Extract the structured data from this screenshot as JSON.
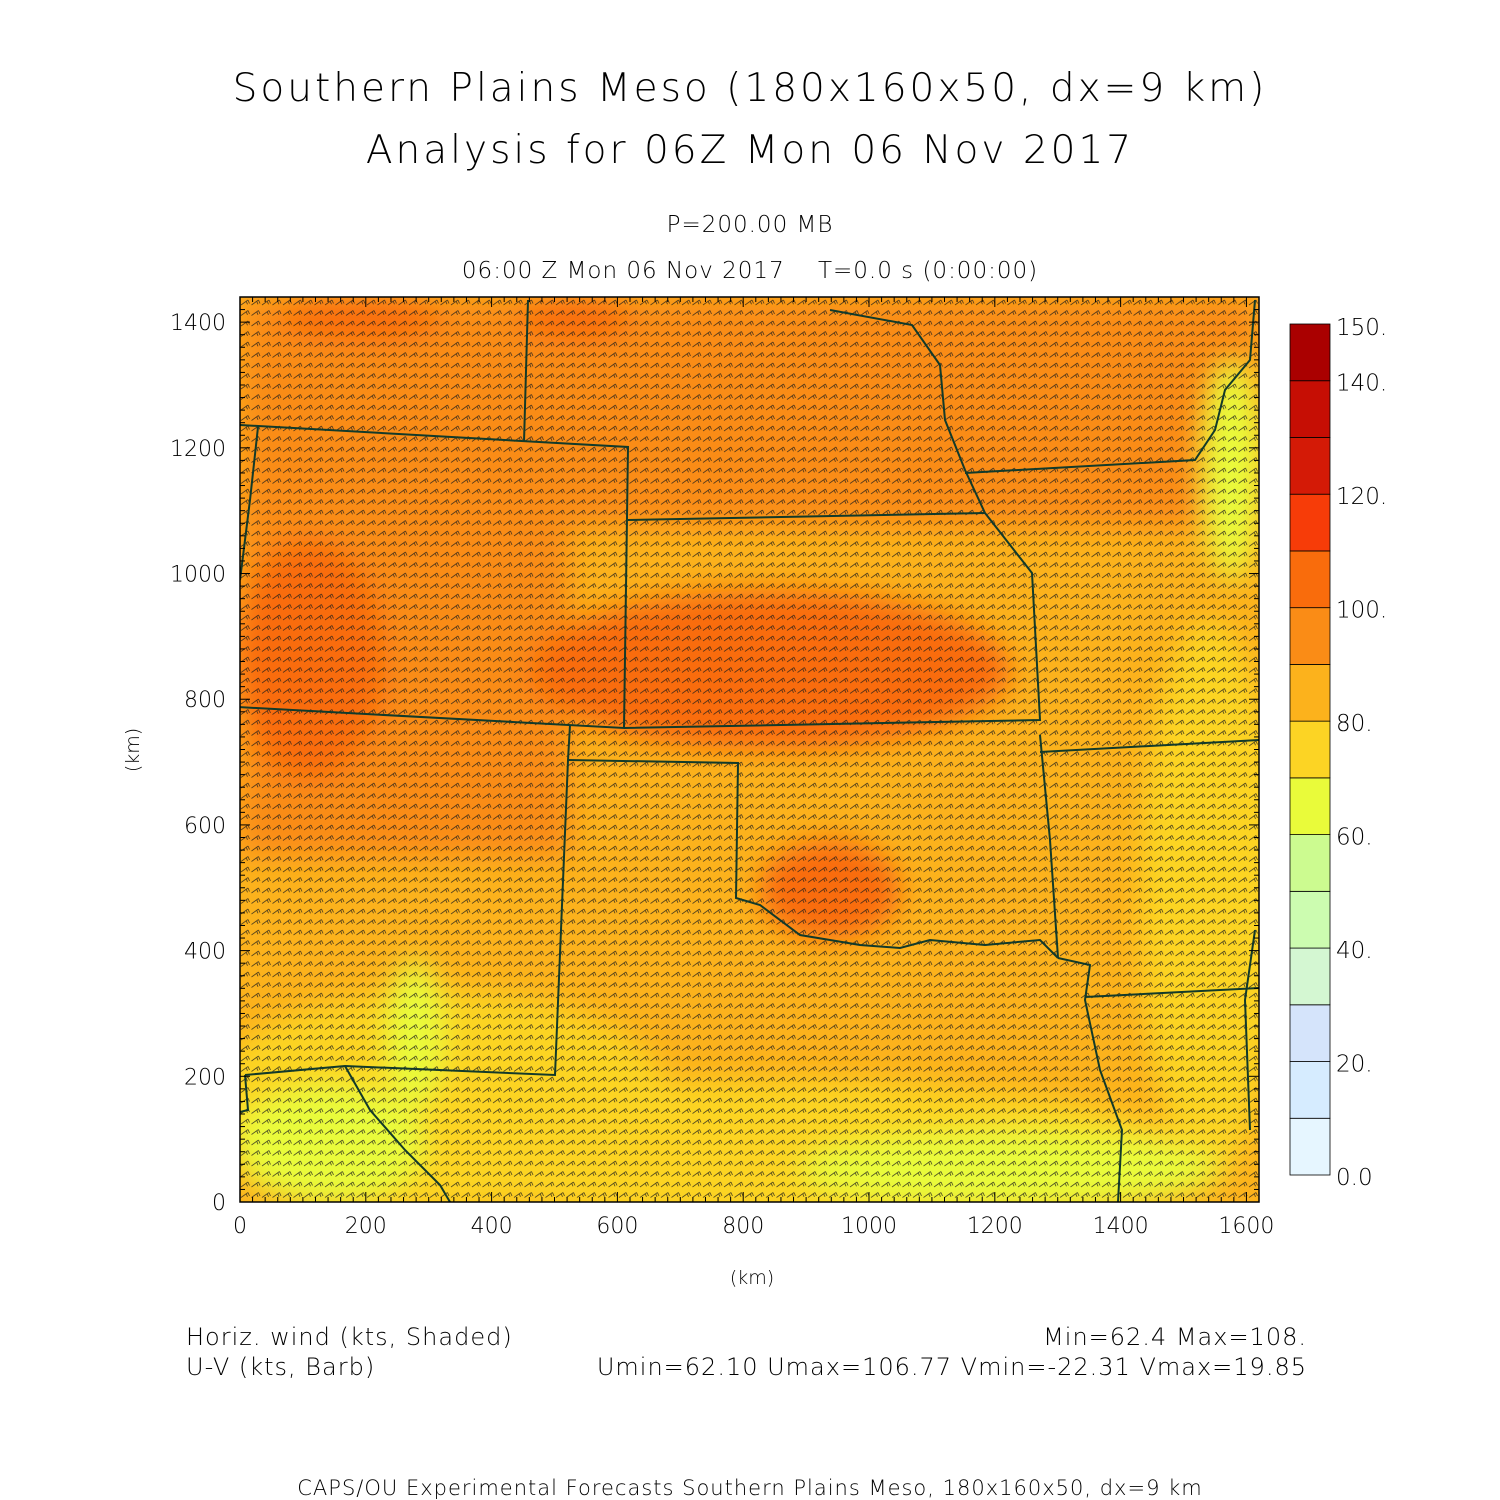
{
  "header": {
    "title_line1": "Southern Plains Meso (180x160x50, dx=9 km)",
    "title_line2": "Analysis for 06Z Mon 06 Nov 2017",
    "level": "P=200.00 MB",
    "valid_time": "06:00 Z Mon 06 Nov 2017",
    "model_time": "T=0.0 s (0:00:00)"
  },
  "axes": {
    "x_label": "(km)",
    "y_label": "(km)",
    "x_ticks": [
      "0",
      "200",
      "400",
      "600",
      "800",
      "1000",
      "1200",
      "1400",
      "1600"
    ],
    "y_ticks": [
      "0",
      "200",
      "400",
      "600",
      "800",
      "1000",
      "1200",
      "1400"
    ],
    "x_range": [
      0,
      1620
    ],
    "y_range": [
      0,
      1440
    ]
  },
  "colorbar": {
    "labels": [
      "0.0",
      "20.",
      "40.",
      "60.",
      "80.",
      "100.",
      "120.",
      "140.",
      "150."
    ],
    "colors": [
      "#e6f6ff",
      "#d6ecff",
      "#d5e4fb",
      "#d4f7d2",
      "#ccfcb0",
      "#ccfb90",
      "#e9fb3a",
      "#fcd424",
      "#fcb21c",
      "#fa8c16",
      "#f96c0c",
      "#f73c08",
      "#d41a06",
      "#c60e04",
      "#aa0000"
    ]
  },
  "legend": {
    "left_line1": "Horiz. wind (kts, Shaded)",
    "left_line2": "U-V (kts, Barb)",
    "right_line1": "Min=62.4 Max=108.",
    "right_line2": "Umin=62.10 Umax=106.77 Vmin=-22.31 Vmax=19.85"
  },
  "footer": "CAPS/OU Experimental Forecasts  Southern Plains Meso, 180x160x50, dx=9 km",
  "chart_data": {
    "type": "heatmap",
    "field": "Horizontal wind speed at 200 mb (kts), shaded, with U-V wind barbs",
    "scale_breaks": [
      0,
      10,
      20,
      30,
      40,
      50,
      60,
      70,
      80,
      90,
      100,
      110,
      120,
      130,
      140,
      150
    ],
    "min": 62.4,
    "max": 108,
    "umin": 62.1,
    "umax": 106.77,
    "vmin": -22.31,
    "vmax": 19.85,
    "xlim": [
      0,
      1620
    ],
    "ylim": [
      0,
      1440
    ]
  }
}
